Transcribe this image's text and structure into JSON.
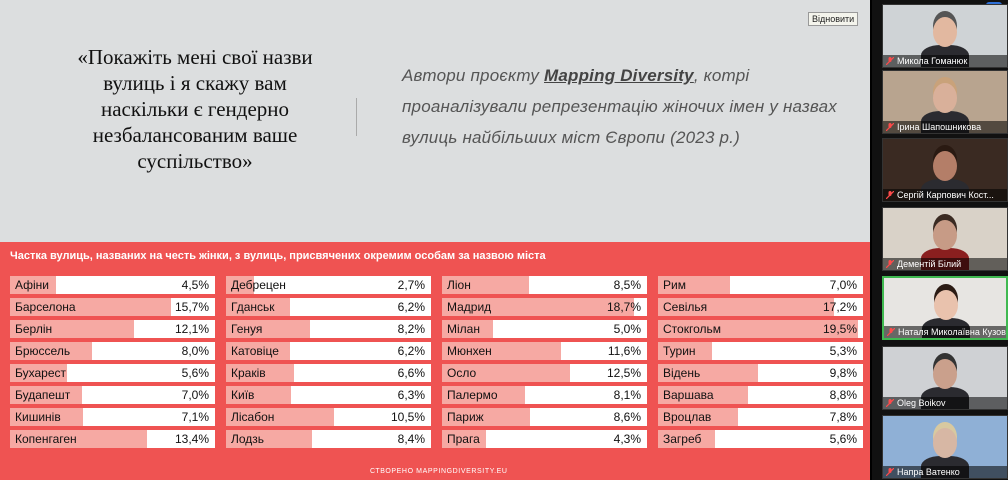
{
  "slide": {
    "resume_label": "Відновити",
    "quote": "«Покажіть мені свої назви вулиць і я скажу вам наскільки є гендерно незбалансованим ваше суспільство»",
    "authors_pre": "Автори проєкту ",
    "authors_brand": "Mapping Diversity",
    "authors_post": ", котрі проаналізували репрезентацію жіночих імен у назвах вулиць найбільших міст Європи (2023 р.)",
    "credit": "СТВОРЕНО MAPPINGDIVERSITY.EU"
  },
  "chart_data": {
    "type": "bar",
    "title": "Частка вулиць, названих на честь жінки, з вулиць, присвячених окремим особам за назвою міста",
    "columns": [
      [
        {
          "city": "Афіни",
          "value": 4.5,
          "label": "4,5%"
        },
        {
          "city": "Барселона",
          "value": 15.7,
          "label": "15,7%"
        },
        {
          "city": "Берлін",
          "value": 12.1,
          "label": "12,1%"
        },
        {
          "city": "Брюссель",
          "value": 8.0,
          "label": "8,0%"
        },
        {
          "city": "Бухарест",
          "value": 5.6,
          "label": "5,6%"
        },
        {
          "city": "Будапешт",
          "value": 7.0,
          "label": "7,0%"
        },
        {
          "city": "Кишинів",
          "value": 7.1,
          "label": "7,1%"
        },
        {
          "city": "Копенгаген",
          "value": 13.4,
          "label": "13,4%"
        }
      ],
      [
        {
          "city": "Дебрецен",
          "value": 2.7,
          "label": "2,7%"
        },
        {
          "city": "Гданськ",
          "value": 6.2,
          "label": "6,2%"
        },
        {
          "city": "Генуя",
          "value": 8.2,
          "label": "8,2%"
        },
        {
          "city": "Катовіце",
          "value": 6.2,
          "label": "6,2%"
        },
        {
          "city": "Краків",
          "value": 6.6,
          "label": "6,6%"
        },
        {
          "city": "Київ",
          "value": 6.3,
          "label": "6,3%"
        },
        {
          "city": "Лісабон",
          "value": 10.5,
          "label": "10,5%"
        },
        {
          "city": "Лодзь",
          "value": 8.4,
          "label": "8,4%"
        }
      ],
      [
        {
          "city": "Ліон",
          "value": 8.5,
          "label": "8,5%"
        },
        {
          "city": "Мадрид",
          "value": 18.7,
          "label": "18,7%"
        },
        {
          "city": "Мілан",
          "value": 5.0,
          "label": "5,0%"
        },
        {
          "city": "Мюнхен",
          "value": 11.6,
          "label": "11,6%"
        },
        {
          "city": "Осло",
          "value": 12.5,
          "label": "12,5%"
        },
        {
          "city": "Палермо",
          "value": 8.1,
          "label": "8,1%"
        },
        {
          "city": "Париж",
          "value": 8.6,
          "label": "8,6%"
        },
        {
          "city": "Прага",
          "value": 4.3,
          "label": "4,3%"
        }
      ],
      [
        {
          "city": "Рим",
          "value": 7.0,
          "label": "7,0%"
        },
        {
          "city": "Севілья",
          "value": 17.2,
          "label": "17,2%"
        },
        {
          "city": "Стокгольм",
          "value": 19.5,
          "label": "19,5%"
        },
        {
          "city": "Турин",
          "value": 5.3,
          "label": "5,3%"
        },
        {
          "city": "Відень",
          "value": 9.8,
          "label": "9,8%"
        },
        {
          "city": "Варшава",
          "value": 8.8,
          "label": "8,8%"
        },
        {
          "city": "Вроцлав",
          "value": 7.8,
          "label": "7,8%"
        },
        {
          "city": "Загреб",
          "value": 5.6,
          "label": "5,6%"
        }
      ]
    ]
  },
  "participants": [
    "Микола Гоманюк",
    "Ірина Шапошникова",
    "Сергій Карпович Кост...",
    "Дементій Білий",
    "Наталя Миколаївна Кузов...",
    "Oleg Boikov",
    "Напра Ватенко"
  ],
  "colors": {
    "panel": "#ef5352",
    "fill": "#f6a9a3",
    "slide_bg": "#dcdedf",
    "active_speaker": "#3fb950"
  }
}
